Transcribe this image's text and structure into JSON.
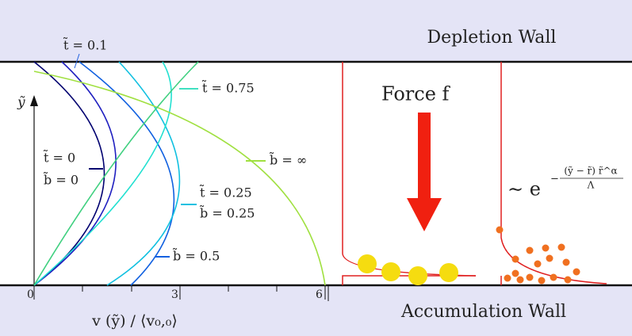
{
  "walls": {
    "top": "Depletion Wall",
    "bottom": "Accumulation Wall"
  },
  "force": "Force f",
  "axes": {
    "y_label": "ỹ",
    "x_label": "v (ỹ) / ⟨v₀,₀⟩",
    "x_ticks": [
      "0",
      "3",
      "6"
    ]
  },
  "curve_labels": [
    "t̃ = 0.1",
    "t̃ = 0.75",
    "b̃ = ∞",
    "t̃ = 0",
    "b̃ = 0",
    "t̃ = 0.25",
    "b̃ = 0.25",
    "b̃ = 0.5"
  ],
  "formula": {
    "base": "∼ e",
    "sign": "−",
    "numerator": "(ỹ − r̃) r̃^α",
    "denominator": "Λ"
  }
}
